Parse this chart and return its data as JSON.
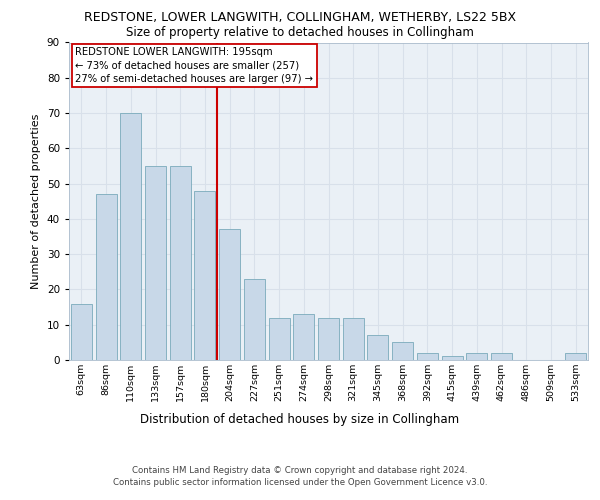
{
  "title": "REDSTONE, LOWER LANGWITH, COLLINGHAM, WETHERBY, LS22 5BX",
  "subtitle": "Size of property relative to detached houses in Collingham",
  "xlabel": "Distribution of detached houses by size in Collingham",
  "ylabel": "Number of detached properties",
  "categories": [
    "63sqm",
    "86sqm",
    "110sqm",
    "133sqm",
    "157sqm",
    "180sqm",
    "204sqm",
    "227sqm",
    "251sqm",
    "274sqm",
    "298sqm",
    "321sqm",
    "345sqm",
    "368sqm",
    "392sqm",
    "415sqm",
    "439sqm",
    "462sqm",
    "486sqm",
    "509sqm",
    "533sqm"
  ],
  "values": [
    16,
    47,
    70,
    55,
    55,
    48,
    37,
    23,
    12,
    13,
    12,
    12,
    7,
    5,
    2,
    1,
    2,
    2,
    0,
    0,
    2
  ],
  "bar_color": "#c8d8e8",
  "bar_edge_color": "#7aaabb",
  "vline_color": "#cc0000",
  "annotation_text": "REDSTONE LOWER LANGWITH: 195sqm\n← 73% of detached houses are smaller (257)\n27% of semi-detached houses are larger (97) →",
  "annotation_box_color": "#ffffff",
  "annotation_box_edge_color": "#cc0000",
  "ylim": [
    0,
    90
  ],
  "yticks": [
    0,
    10,
    20,
    30,
    40,
    50,
    60,
    70,
    80,
    90
  ],
  "grid_color": "#d8e0ea",
  "background_color": "#eaf0f6",
  "footer_line1": "Contains HM Land Registry data © Crown copyright and database right 2024.",
  "footer_line2": "Contains public sector information licensed under the Open Government Licence v3.0."
}
